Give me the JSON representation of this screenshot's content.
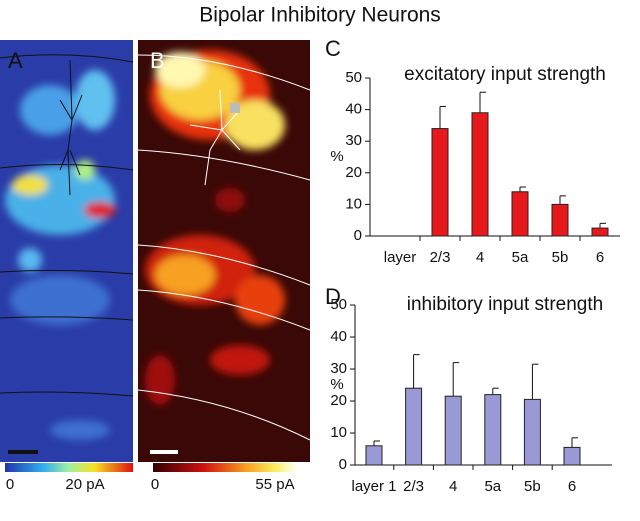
{
  "title": "Bipolar Inhibitory Neurons",
  "chart_data": [
    {
      "type": "heatmap",
      "label": "A",
      "clim": [
        0,
        20
      ],
      "cticks": [
        0,
        {
          "value": 20,
          "label": "20 pA"
        }
      ]
    },
    {
      "type": "heatmap",
      "label": "B",
      "clim": [
        0,
        55
      ],
      "cticks": [
        0,
        {
          "value": 55,
          "label": "55 pA"
        }
      ]
    },
    {
      "type": "bar",
      "label": "C",
      "title": "excitatory input strength",
      "ylabel": "%",
      "categories": [
        "layer",
        "2/3",
        "4",
        "5a",
        "5b",
        "6"
      ],
      "values": [
        null,
        34,
        39,
        14,
        10,
        2.5
      ],
      "errors": [
        null,
        7,
        6.5,
        1.5,
        2.7,
        1.5
      ],
      "color": "#e8191c",
      "ylim": [
        0,
        50
      ],
      "yticks": [
        0,
        10,
        20,
        30,
        40,
        50
      ]
    },
    {
      "type": "bar",
      "label": "D",
      "title": "inhibitory input strength",
      "ylabel": "%",
      "categories": [
        "layer 1",
        "2/3",
        "4",
        "5a",
        "5b",
        "6"
      ],
      "values": [
        6,
        24,
        21.5,
        22,
        20.5,
        5.5
      ],
      "errors": [
        1.5,
        10.5,
        10.5,
        2,
        11,
        3
      ],
      "color": "#9999d6",
      "ylim": [
        0,
        50
      ],
      "yticks": [
        0,
        10,
        20,
        30,
        40,
        50
      ]
    }
  ]
}
